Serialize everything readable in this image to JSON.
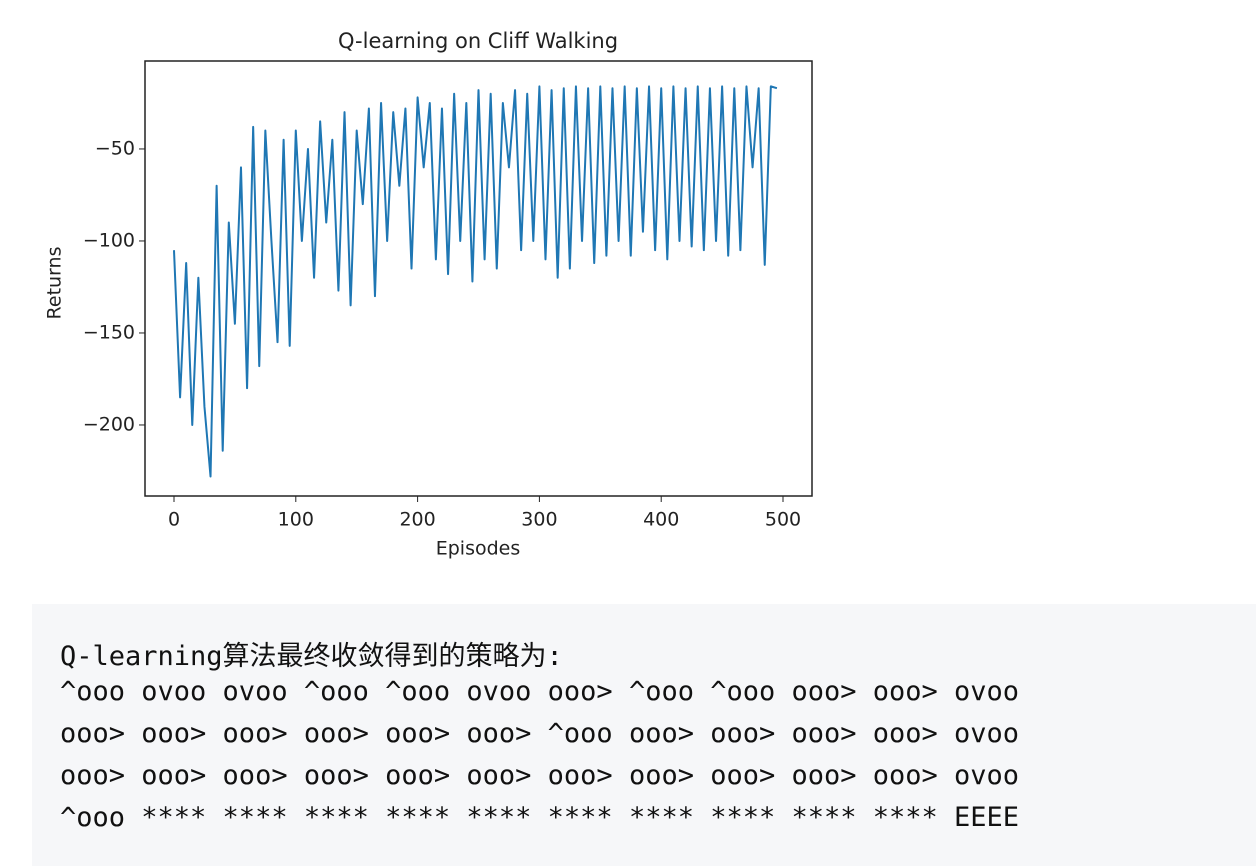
{
  "chart_data": {
    "type": "line",
    "title": "Q-learning on Cliff Walking",
    "x_label": "Episodes",
    "y_label": "Returns",
    "x": [
      0,
      5,
      10,
      15,
      20,
      25,
      30,
      35,
      40,
      45,
      50,
      55,
      60,
      65,
      70,
      75,
      80,
      85,
      90,
      95,
      100,
      105,
      110,
      115,
      120,
      125,
      130,
      135,
      140,
      145,
      150,
      155,
      160,
      165,
      170,
      175,
      180,
      185,
      190,
      195,
      200,
      205,
      210,
      215,
      220,
      225,
      230,
      235,
      240,
      245,
      250,
      255,
      260,
      265,
      270,
      275,
      280,
      285,
      290,
      295,
      300,
      305,
      310,
      315,
      320,
      325,
      330,
      335,
      340,
      345,
      350,
      355,
      360,
      365,
      370,
      375,
      380,
      385,
      390,
      395,
      400,
      405,
      410,
      415,
      420,
      425,
      430,
      435,
      440,
      445,
      450,
      455,
      460,
      465,
      470,
      475,
      480,
      485,
      490,
      495
    ],
    "series": [
      {
        "name": "Returns",
        "color": "#1f77b4",
        "values": [
          -105,
          -185,
          -112,
          -200,
          -120,
          -190,
          -228,
          -70,
          -214,
          -90,
          -145,
          -60,
          -180,
          -38,
          -168,
          -40,
          -100,
          -155,
          -45,
          -157,
          -40,
          -100,
          -50,
          -120,
          -35,
          -90,
          -45,
          -127,
          -30,
          -135,
          -40,
          -80,
          -28,
          -130,
          -25,
          -100,
          -30,
          -70,
          -28,
          -115,
          -22,
          -60,
          -25,
          -110,
          -28,
          -118,
          -20,
          -100,
          -25,
          -122,
          -18,
          -110,
          -20,
          -115,
          -25,
          -60,
          -18,
          -105,
          -20,
          -100,
          -16,
          -110,
          -18,
          -120,
          -17,
          -115,
          -16,
          -100,
          -17,
          -112,
          -16,
          -108,
          -17,
          -100,
          -16,
          -108,
          -17,
          -95,
          -16,
          -105,
          -17,
          -110,
          -16,
          -100,
          -17,
          -103,
          -16,
          -105,
          -17,
          -100,
          -16,
          -108,
          -17,
          -105,
          -16,
          -60,
          -17,
          -113,
          -16,
          -17
        ]
      }
    ],
    "xlim": [
      -23.8,
      523.8
    ],
    "xticks": [
      0,
      100,
      200,
      300,
      400,
      500
    ],
    "ylim": [
      -238.6,
      -2.2
    ],
    "yticks": [
      {
        "value": -200,
        "label": "−200"
      },
      {
        "value": -150,
        "label": "−150"
      },
      {
        "value": -100,
        "label": "−100"
      },
      {
        "value": -50,
        "label": "−50"
      }
    ],
    "grid": false
  },
  "output": {
    "heading": "Q-learning算法最终收敛得到的策略为:",
    "rows": [
      "^ooo ovoo ovoo ^ooo ^ooo ovoo ooo> ^ooo ^ooo ooo> ooo> ovoo",
      "ooo> ooo> ooo> ooo> ooo> ooo> ^ooo ooo> ooo> ooo> ooo> ovoo",
      "ooo> ooo> ooo> ooo> ooo> ooo> ooo> ooo> ooo> ooo> ooo> ovoo",
      "^ooo **** **** **** **** **** **** **** **** **** **** EEEE"
    ]
  }
}
